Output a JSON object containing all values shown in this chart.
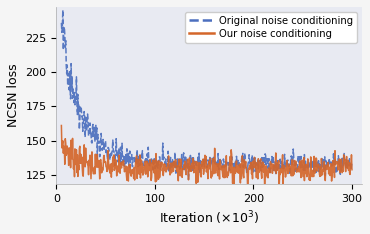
{
  "title": "",
  "xlabel": "Iteration ($\\times 10^3$)",
  "ylabel": "NCSN loss",
  "xlim": [
    0,
    310
  ],
  "ylim": [
    118,
    248
  ],
  "yticks": [
    125,
    150,
    175,
    200,
    225
  ],
  "xticks": [
    0,
    100,
    200,
    300
  ],
  "legend_labels": [
    "Original noise conditioning",
    "Our noise conditioning"
  ],
  "line1_color": "#4c6fbe",
  "line2_color": "#d4662a",
  "background_color": "#e8eaf2",
  "fig_background": "#f5f5f5",
  "line1_style": "--",
  "line2_style": "-",
  "line_width": 1.1,
  "seed1": 42,
  "seed2": 7,
  "n_points": 600
}
